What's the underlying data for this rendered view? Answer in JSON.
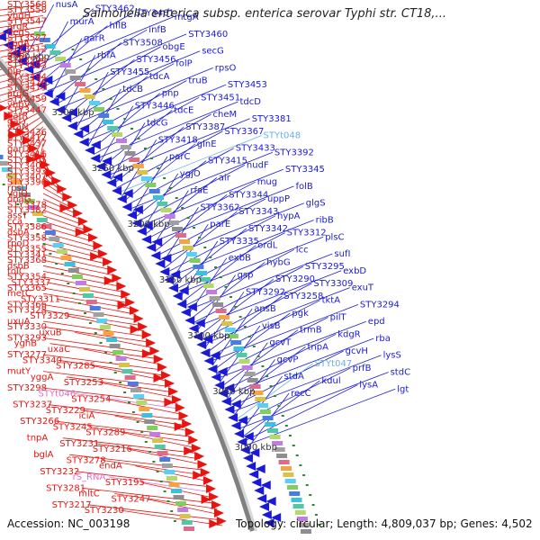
{
  "title": "Salmonella enterica subsp. enterica serovar Typhi str. CT18,...",
  "footer": {
    "accession": "Accession: NC_003198",
    "summary": "Topology: circular; Length: 4,809,037 bp; Genes: 4,502"
  },
  "colors": {
    "minus_strand": "#e8140f",
    "plus_strand": "#1a1ad6",
    "rna": "#6ab0e8",
    "pseudo": "#e070c8",
    "backbone": "#808080",
    "tick": "#2a8a2a"
  },
  "kbp_ticks": [
    "3350 kbp",
    "3300 kbp",
    "3250 kbp",
    "3200 kbp",
    "3150 kbp",
    "3100 kbp",
    "3050 kbp",
    "3000 kbp"
  ],
  "left_labels": [
    {
      "t": "STY3568",
      "c": "r"
    },
    {
      "t": "STY3558",
      "c": "r"
    },
    {
      "t": "yhdH",
      "c": "r"
    },
    {
      "t": "STY3547",
      "c": "r"
    },
    {
      "t": "argR",
      "c": "r"
    },
    {
      "t": "degS",
      "c": "r"
    },
    {
      "t": "STY3527",
      "c": "r"
    },
    {
      "t": "codA",
      "c": "r"
    },
    {
      "t": "STY3512",
      "c": "r"
    },
    {
      "t": "gltB",
      "c": "r"
    },
    {
      "t": "STY3504",
      "c": "r"
    },
    {
      "t": "STY3493",
      "c": "r"
    },
    {
      "t": "nlp",
      "c": "r"
    },
    {
      "t": "STY3494",
      "c": "r"
    },
    {
      "t": "STY3476",
      "c": "r"
    },
    {
      "t": "STY3479",
      "c": "r"
    },
    {
      "t": "argG",
      "c": "r"
    },
    {
      "t": "STY3459",
      "c": "r"
    },
    {
      "t": "yhbV",
      "c": "r"
    },
    {
      "t": "STY3447",
      "c": "r"
    },
    {
      "t": "gatR",
      "c": "r"
    },
    {
      "t": "gatY",
      "c": "r"
    },
    {
      "t": "yraN",
      "c": "r"
    },
    {
      "t": "STY3436",
      "c": "r"
    },
    {
      "t": "STY3417",
      "c": "r"
    },
    {
      "t": "STY3437",
      "c": "r"
    },
    {
      "t": "garD",
      "c": "r"
    },
    {
      "t": "STY3416",
      "c": "r"
    },
    {
      "t": "STY3405",
      "c": "r"
    },
    {
      "t": "STY3401",
      "c": "r"
    },
    {
      "t": "STY3393",
      "c": "r"
    },
    {
      "t": "STY3407",
      "c": "r"
    },
    {
      "t": "STY3396",
      "c": "r"
    },
    {
      "t": "rpsU",
      "c": "r"
    },
    {
      "t": "ygjQ",
      "c": "r"
    },
    {
      "t": "dnaG",
      "c": "r"
    },
    {
      "t": "STY3378",
      "c": "r"
    },
    {
      "t": "STY3382",
      "c": "r"
    },
    {
      "t": "assT",
      "c": "r"
    },
    {
      "t": "cca",
      "c": "r"
    },
    {
      "t": "STY3386",
      "c": "r"
    },
    {
      "t": "dsbA",
      "c": "r"
    },
    {
      "t": "STY3358",
      "c": "r"
    },
    {
      "t": "rpoD",
      "c": "r"
    },
    {
      "t": "STY3355",
      "c": "r"
    },
    {
      "t": "STY3341",
      "c": "r"
    },
    {
      "t": "STY3368",
      "c": "r"
    },
    {
      "t": "dsbB",
      "c": "r"
    },
    {
      "t": "tolC",
      "c": "r"
    },
    {
      "t": "STY3354",
      "c": "r"
    },
    {
      "t": "STY3337",
      "c": "r"
    },
    {
      "t": "STY3365",
      "c": "r"
    },
    {
      "t": "metC",
      "c": "r"
    },
    {
      "t": "STY3311",
      "c": "r"
    },
    {
      "t": "STY3366",
      "c": "r"
    },
    {
      "t": "STY3328",
      "c": "r"
    },
    {
      "t": "STY3329",
      "c": "r"
    },
    {
      "t": "uxuA",
      "c": "r"
    },
    {
      "t": "STY3330",
      "c": "r"
    },
    {
      "t": "uxuB",
      "c": "r"
    },
    {
      "t": "STY3293",
      "c": "r"
    },
    {
      "t": "yghB",
      "c": "r"
    },
    {
      "t": "uxaC",
      "c": "r"
    },
    {
      "t": "STY3277",
      "c": "r"
    },
    {
      "t": "STY3340",
      "c": "r"
    },
    {
      "t": "STY3285",
      "c": "r"
    },
    {
      "t": "mutY",
      "c": "r"
    },
    {
      "t": "yggA",
      "c": "r"
    },
    {
      "t": "STY3253",
      "c": "r"
    },
    {
      "t": "STY3298",
      "c": "r"
    },
    {
      "t": "STYt046",
      "c": "p"
    },
    {
      "t": "STY3254",
      "c": "r"
    },
    {
      "t": "STY3237",
      "c": "r"
    },
    {
      "t": "STY3229",
      "c": "r"
    },
    {
      "t": "iciA",
      "c": "r"
    },
    {
      "t": "STY3266",
      "c": "r"
    },
    {
      "t": "STY3245",
      "c": "r"
    },
    {
      "t": "STY3289",
      "c": "r"
    },
    {
      "t": "tnpA",
      "c": "r"
    },
    {
      "t": "STY3231",
      "c": "r"
    },
    {
      "t": "STY3216",
      "c": "r"
    },
    {
      "t": "bglA",
      "c": "r"
    },
    {
      "t": "STY3278",
      "c": "r"
    },
    {
      "t": "endA",
      "c": "r"
    },
    {
      "t": "STY3232",
      "c": "r"
    },
    {
      "t": "rS_RNA",
      "c": "p"
    },
    {
      "t": "STY3195",
      "c": "r"
    },
    {
      "t": "STY3281",
      "c": "r"
    },
    {
      "t": "mltC",
      "c": "r"
    },
    {
      "t": "STY3247",
      "c": "r"
    },
    {
      "t": "STY3217",
      "c": "r"
    },
    {
      "t": "STY3230",
      "c": "r"
    }
  ],
  "right_labels": [
    {
      "t": "nusA",
      "c": "b"
    },
    {
      "t": "STY3462",
      "c": "b"
    },
    {
      "t": "STY3461",
      "c": "b"
    },
    {
      "t": "mtgA",
      "c": "b"
    },
    {
      "t": "murA",
      "c": "b"
    },
    {
      "t": "hflB",
      "c": "b"
    },
    {
      "t": "infB",
      "c": "b"
    },
    {
      "t": "STY3460",
      "c": "b"
    },
    {
      "t": "garR",
      "c": "b"
    },
    {
      "t": "STY3508",
      "c": "b"
    },
    {
      "t": "obgE",
      "c": "b"
    },
    {
      "t": "secG",
      "c": "b"
    },
    {
      "t": "rbfA",
      "c": "b"
    },
    {
      "t": "STY3456",
      "c": "b"
    },
    {
      "t": "folP",
      "c": "b"
    },
    {
      "t": "rpsO",
      "c": "b"
    },
    {
      "t": "STY3455",
      "c": "b"
    },
    {
      "t": "tdcA",
      "c": "b"
    },
    {
      "t": "truB",
      "c": "b"
    },
    {
      "t": "STY3453",
      "c": "b"
    },
    {
      "t": "tdcB",
      "c": "b"
    },
    {
      "t": "pnp",
      "c": "b"
    },
    {
      "t": "STY3451",
      "c": "b"
    },
    {
      "t": "tdcD",
      "c": "b"
    },
    {
      "t": "STY3446",
      "c": "b"
    },
    {
      "t": "tdcE",
      "c": "b"
    },
    {
      "t": "cheM",
      "c": "b"
    },
    {
      "t": "STY3381",
      "c": "b"
    },
    {
      "t": "tdcG",
      "c": "b"
    },
    {
      "t": "STY3387",
      "c": "b"
    },
    {
      "t": "STY3367",
      "c": "b"
    },
    {
      "t": "STYt048",
      "c": "c"
    },
    {
      "t": "STY3418",
      "c": "b"
    },
    {
      "t": "glnE",
      "c": "b"
    },
    {
      "t": "STY3433",
      "c": "b"
    },
    {
      "t": "STY3392",
      "c": "b"
    },
    {
      "t": "parC",
      "c": "b"
    },
    {
      "t": "STY3415",
      "c": "b"
    },
    {
      "t": "nudF",
      "c": "b"
    },
    {
      "t": "STY3345",
      "c": "b"
    },
    {
      "t": "ygjO",
      "c": "b"
    },
    {
      "t": "air",
      "c": "b"
    },
    {
      "t": "mug",
      "c": "b"
    },
    {
      "t": "folB",
      "c": "b"
    },
    {
      "t": "rfaE",
      "c": "b"
    },
    {
      "t": "STY3344",
      "c": "b"
    },
    {
      "t": "uppP",
      "c": "b"
    },
    {
      "t": "glgS",
      "c": "b"
    },
    {
      "t": "STY3362",
      "c": "b"
    },
    {
      "t": "STY3343",
      "c": "b"
    },
    {
      "t": "hypA",
      "c": "b"
    },
    {
      "t": "ribB",
      "c": "b"
    },
    {
      "t": "parE",
      "c": "b"
    },
    {
      "t": "STY3342",
      "c": "b"
    },
    {
      "t": "STY3312",
      "c": "b"
    },
    {
      "t": "plsC",
      "c": "b"
    },
    {
      "t": "STY3335",
      "c": "b"
    },
    {
      "t": "ordL",
      "c": "b"
    },
    {
      "t": "icc",
      "c": "b"
    },
    {
      "t": "sufI",
      "c": "b"
    },
    {
      "t": "exbB",
      "c": "b"
    },
    {
      "t": "hybG",
      "c": "b"
    },
    {
      "t": "STY3295",
      "c": "b"
    },
    {
      "t": "exbD",
      "c": "b"
    },
    {
      "t": "gsp",
      "c": "b"
    },
    {
      "t": "STY3290",
      "c": "b"
    },
    {
      "t": "STY3309",
      "c": "b"
    },
    {
      "t": "exuT",
      "c": "b"
    },
    {
      "t": "STY3292",
      "c": "b"
    },
    {
      "t": "STY3258",
      "c": "b"
    },
    {
      "t": "tktA",
      "c": "b"
    },
    {
      "t": "STY3294",
      "c": "b"
    },
    {
      "t": "ansB",
      "c": "b"
    },
    {
      "t": "pgk",
      "c": "b"
    },
    {
      "t": "pilT",
      "c": "b"
    },
    {
      "t": "epd",
      "c": "b"
    },
    {
      "t": "visB",
      "c": "b"
    },
    {
      "t": "trmB",
      "c": "b"
    },
    {
      "t": "kdgR",
      "c": "b"
    },
    {
      "t": "rba",
      "c": "b"
    },
    {
      "t": "gcvT",
      "c": "b"
    },
    {
      "t": "tnpA",
      "c": "b"
    },
    {
      "t": "gcvH",
      "c": "b"
    },
    {
      "t": "lysS",
      "c": "b"
    },
    {
      "t": "gcvP",
      "c": "b"
    },
    {
      "t": "STYt047",
      "c": "c"
    },
    {
      "t": "prfB",
      "c": "b"
    },
    {
      "t": "stdC",
      "c": "b"
    },
    {
      "t": "stdA",
      "c": "b"
    },
    {
      "t": "kdul",
      "c": "b"
    },
    {
      "t": "lysA",
      "c": "b"
    },
    {
      "t": "lgt",
      "c": "b"
    },
    {
      "t": "recC",
      "c": "b"
    }
  ]
}
